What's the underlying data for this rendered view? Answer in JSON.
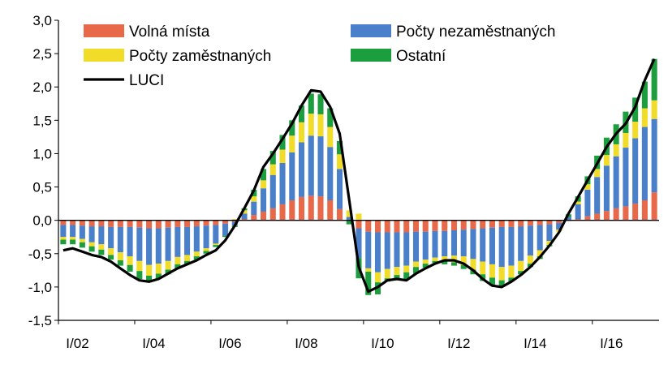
{
  "chart_data": {
    "type": "bar",
    "stacked": true,
    "ylim": [
      -1.5,
      3.0
    ],
    "yticks": [
      "3,0",
      "2,5",
      "2,0",
      "1,5",
      "1,0",
      "0,5",
      "0,0",
      "-0,5",
      "-1,0",
      "-1,5"
    ],
    "ytick_values": [
      3.0,
      2.5,
      2.0,
      1.5,
      1.0,
      0.5,
      0.0,
      -0.5,
      -1.0,
      -1.5
    ],
    "xtick_labels": [
      "I/02",
      "I/04",
      "I/06",
      "I/08",
      "I/10",
      "I/12",
      "I/14",
      "I/16"
    ],
    "xtick_quarters": [
      0,
      8,
      16,
      24,
      32,
      40,
      48,
      56
    ],
    "quarters": 63,
    "legend": [
      {
        "label": "Volná místa",
        "color": "#e8684a"
      },
      {
        "label": "Počty nezaměstnaných",
        "color": "#4a7fc9"
      },
      {
        "label": "Počty zaměstnaných",
        "color": "#f2dc2a"
      },
      {
        "label": "Ostatní",
        "color": "#1c9e3e"
      },
      {
        "label": "LUCI",
        "color": "#000000"
      }
    ],
    "series": [
      {
        "name": "Volná místa",
        "color": "#e8684a",
        "values": [
          -0.07,
          -0.07,
          -0.08,
          -0.09,
          -0.09,
          -0.1,
          -0.1,
          -0.1,
          -0.11,
          -0.12,
          -0.12,
          -0.11,
          -0.1,
          -0.1,
          -0.09,
          -0.08,
          -0.07,
          -0.05,
          -0.02,
          0.02,
          0.08,
          0.13,
          0.18,
          0.24,
          0.3,
          0.35,
          0.37,
          0.36,
          0.3,
          0.17,
          -0.01,
          -0.12,
          -0.17,
          -0.18,
          -0.18,
          -0.18,
          -0.18,
          -0.17,
          -0.17,
          -0.16,
          -0.16,
          -0.15,
          -0.14,
          -0.13,
          -0.12,
          -0.11,
          -0.1,
          -0.1,
          -0.09,
          -0.08,
          -0.07,
          -0.06,
          -0.04,
          -0.01,
          0.02,
          0.06,
          0.1,
          0.14,
          0.18,
          0.21,
          0.25,
          0.3,
          0.42
        ]
      },
      {
        "name": "Počty nezaměstnaných",
        "color": "#4a7fc9",
        "values": [
          -0.18,
          -0.18,
          -0.2,
          -0.24,
          -0.27,
          -0.32,
          -0.38,
          -0.44,
          -0.5,
          -0.55,
          -0.53,
          -0.5,
          -0.45,
          -0.42,
          -0.38,
          -0.34,
          -0.28,
          -0.18,
          -0.06,
          0.08,
          0.2,
          0.35,
          0.5,
          0.62,
          0.72,
          0.82,
          0.9,
          0.9,
          0.8,
          0.6,
          0.05,
          -0.45,
          -0.55,
          -0.6,
          -0.55,
          -0.52,
          -0.5,
          -0.45,
          -0.42,
          -0.4,
          -0.38,
          -0.38,
          -0.4,
          -0.45,
          -0.5,
          -0.55,
          -0.6,
          -0.58,
          -0.52,
          -0.45,
          -0.38,
          -0.25,
          -0.1,
          0.05,
          0.22,
          0.4,
          0.55,
          0.68,
          0.78,
          0.88,
          0.98,
          1.1,
          1.1
        ]
      },
      {
        "name": "Počty zaměstnaných",
        "color": "#f2dc2a",
        "values": [
          -0.04,
          -0.04,
          -0.05,
          -0.06,
          -0.08,
          -0.1,
          -0.12,
          -0.13,
          -0.15,
          -0.16,
          -0.15,
          -0.13,
          -0.11,
          -0.09,
          -0.07,
          -0.04,
          -0.02,
          0.0,
          0.02,
          0.05,
          0.08,
          0.12,
          0.16,
          0.2,
          0.25,
          0.3,
          0.33,
          0.33,
          0.3,
          0.22,
          0.1,
          0.1,
          -0.05,
          -0.15,
          -0.14,
          -0.12,
          -0.1,
          -0.08,
          -0.06,
          -0.05,
          -0.07,
          -0.1,
          -0.13,
          -0.16,
          -0.19,
          -0.2,
          -0.2,
          -0.18,
          -0.15,
          -0.12,
          -0.09,
          -0.06,
          -0.03,
          0.0,
          0.04,
          0.08,
          0.12,
          0.16,
          0.18,
          0.22,
          0.25,
          0.28,
          0.28
        ]
      },
      {
        "name": "Ostatní",
        "color": "#1c9e3e",
        "values": [
          -0.07,
          -0.07,
          -0.08,
          -0.08,
          -0.08,
          -0.07,
          -0.08,
          -0.1,
          -0.12,
          -0.1,
          -0.08,
          -0.07,
          -0.06,
          -0.05,
          -0.05,
          -0.04,
          -0.03,
          -0.02,
          -0.02,
          0.03,
          0.1,
          0.17,
          0.2,
          0.22,
          0.23,
          0.25,
          0.3,
          0.3,
          0.28,
          0.2,
          -0.05,
          -0.3,
          -0.35,
          -0.18,
          -0.05,
          -0.05,
          -0.1,
          -0.1,
          -0.06,
          -0.03,
          -0.05,
          -0.05,
          -0.06,
          -0.07,
          -0.1,
          -0.12,
          -0.1,
          -0.06,
          -0.05,
          -0.05,
          -0.04,
          -0.02,
          0.0,
          0.04,
          0.08,
          0.12,
          0.2,
          0.26,
          0.3,
          0.32,
          0.36,
          0.4,
          0.62
        ]
      },
      {
        "name": "LUCI",
        "color": "#000000",
        "type": "line",
        "values": [
          -0.45,
          -0.42,
          -0.47,
          -0.52,
          -0.55,
          -0.62,
          -0.72,
          -0.82,
          -0.9,
          -0.92,
          -0.88,
          -0.8,
          -0.72,
          -0.66,
          -0.6,
          -0.52,
          -0.45,
          -0.3,
          -0.08,
          0.18,
          0.45,
          0.8,
          1.0,
          1.22,
          1.45,
          1.72,
          1.95,
          1.93,
          1.7,
          1.3,
          0.3,
          -0.7,
          -1.07,
          -1.0,
          -0.9,
          -0.88,
          -0.9,
          -0.8,
          -0.72,
          -0.65,
          -0.6,
          -0.6,
          -0.65,
          -0.75,
          -0.88,
          -0.98,
          -1.0,
          -0.92,
          -0.82,
          -0.7,
          -0.55,
          -0.38,
          -0.18,
          0.1,
          0.35,
          0.6,
          0.85,
          1.1,
          1.3,
          1.45,
          1.7,
          2.1,
          2.42
        ]
      }
    ]
  }
}
